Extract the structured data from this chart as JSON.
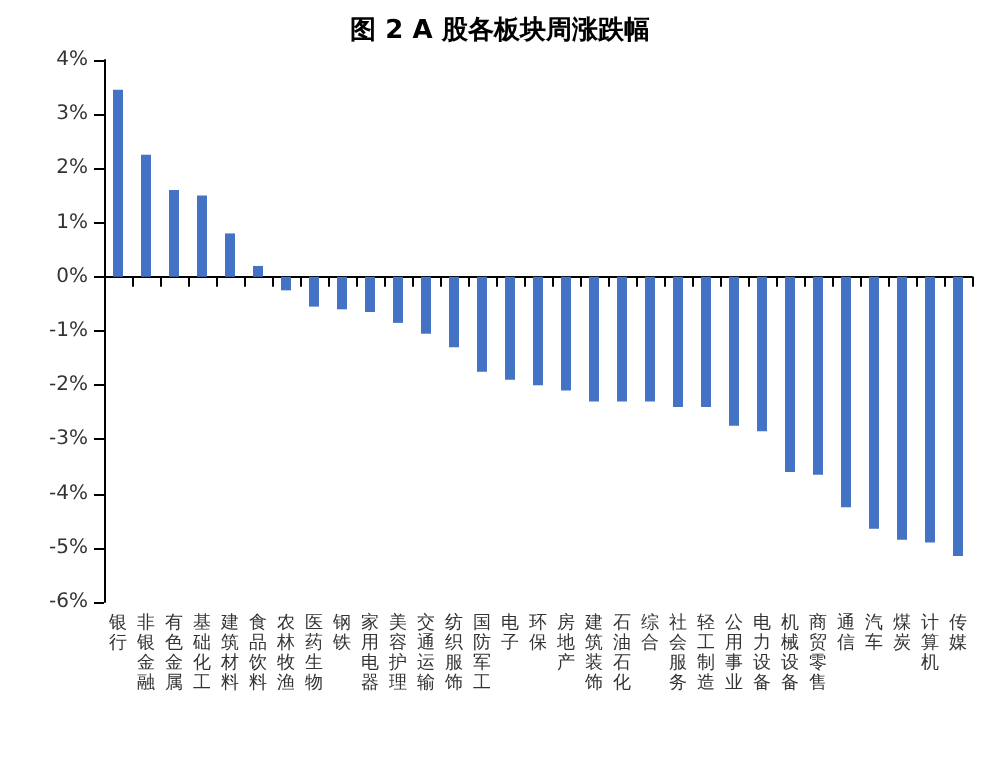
{
  "chart_data": {
    "type": "bar",
    "title": "图 2 A 股各板块周涨跌幅",
    "categories": [
      "银行",
      "非银金融",
      "有色金属",
      "基础化工",
      "建筑材料",
      "食品饮料",
      "农林牧渔",
      "医药生物",
      "钢铁",
      "家用电器",
      "美容护理",
      "交通运输",
      "纺织服饰",
      "国防军工",
      "电子",
      "环保",
      "房地产",
      "建筑装饰",
      "石油石化",
      "综合",
      "社会服务",
      "轻工制造",
      "公用事业",
      "电力设备",
      "机械设备",
      "商贸零售",
      "通信",
      "汽车",
      "煤炭",
      "计算机",
      "传媒"
    ],
    "values": [
      3.45,
      2.25,
      1.6,
      1.5,
      0.8,
      0.2,
      -0.25,
      -0.55,
      -0.6,
      -0.65,
      -0.85,
      -1.05,
      -1.3,
      -1.75,
      -1.9,
      -2.0,
      -2.1,
      -2.3,
      -2.3,
      -2.3,
      -2.4,
      -2.4,
      -2.75,
      -2.85,
      -3.6,
      -3.65,
      -4.25,
      -4.65,
      -4.85,
      -4.9,
      -5.15
    ],
    "color": "#4472c4",
    "ylim": [
      -6,
      4
    ],
    "yticks": [
      {
        "value": -6,
        "label": "-6%"
      },
      {
        "value": -5,
        "label": "-5%"
      },
      {
        "value": -4,
        "label": "-4%"
      },
      {
        "value": -3,
        "label": "-3%"
      },
      {
        "value": -2,
        "label": "-2%"
      },
      {
        "value": -1,
        "label": "-1%"
      },
      {
        "value": 0,
        "label": "0%"
      },
      {
        "value": 1,
        "label": "1%"
      },
      {
        "value": 2,
        "label": "2%"
      },
      {
        "value": 3,
        "label": "3%"
      },
      {
        "value": 4,
        "label": "4%"
      }
    ],
    "legend": false
  }
}
